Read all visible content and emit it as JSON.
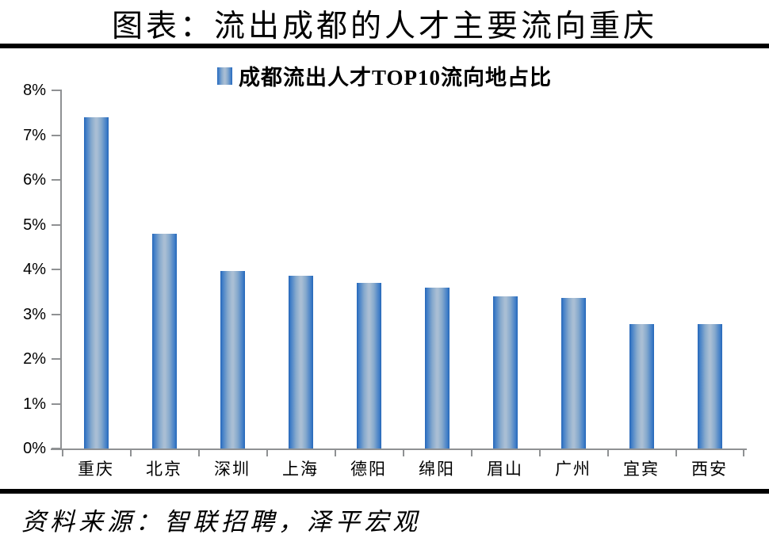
{
  "title": "图表：流出成都的人才主要流向重庆",
  "source": "资料来源：智联招聘，泽平宏观",
  "colors": {
    "bar_edge": "#2566b8",
    "bar_shade": "#3f7dc7",
    "bar_light": "#86a9cd",
    "bar_mid": "#a9bed4",
    "axis": "#8f9193",
    "rule": "#000000",
    "text": "#000000"
  },
  "chart_data": {
    "type": "bar",
    "title": "成都流出人才TOP10流向地占比",
    "categories": [
      "重庆",
      "北京",
      "深圳",
      "上海",
      "德阳",
      "绵阳",
      "眉山",
      "广州",
      "宜宾",
      "西安"
    ],
    "values": [
      7.4,
      4.79,
      3.97,
      3.86,
      3.7,
      3.59,
      3.39,
      3.36,
      2.78,
      2.78
    ],
    "unit": "%",
    "xlabel": "",
    "ylabel": "",
    "ylim": [
      0,
      8
    ],
    "yticks": [
      "0%",
      "1%",
      "2%",
      "3%",
      "4%",
      "5%",
      "6%",
      "7%",
      "8%"
    ],
    "legend": [
      {
        "name": "成都流出人才TOP10流向地占比",
        "color": "#2566b8"
      }
    ],
    "legend_position": "top-center",
    "grid": false
  }
}
